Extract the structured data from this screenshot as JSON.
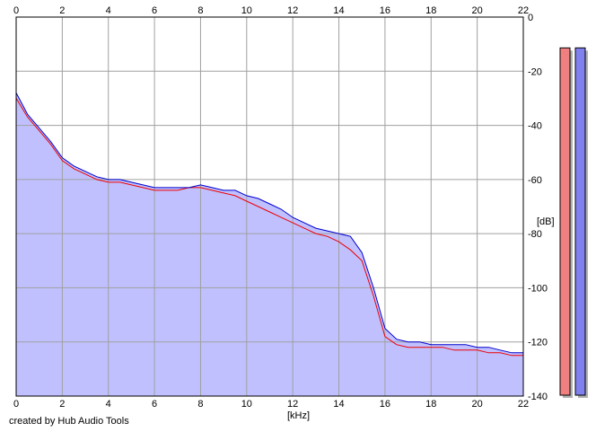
{
  "chart_data": {
    "type": "area",
    "xlabel": "[kHz]",
    "ylabel": "[dB]",
    "xlim": [
      0,
      22
    ],
    "ylim": [
      -140,
      0
    ],
    "x_ticks": [
      0,
      2,
      4,
      6,
      8,
      10,
      12,
      14,
      16,
      18,
      20,
      22
    ],
    "y_ticks": [
      0,
      -20,
      -40,
      -60,
      -80,
      -100,
      -120,
      -140
    ],
    "y_tick_labels": [
      "0",
      "-20",
      "-40",
      "-60",
      "-80",
      "-100",
      "-120",
      "-140"
    ],
    "grid": true,
    "series": [
      {
        "color": "#0000cc",
        "x": [
          0,
          0.5,
          1,
          1.5,
          2,
          2.5,
          3,
          3.5,
          4,
          4.5,
          5,
          5.5,
          6,
          6.5,
          7,
          7.5,
          8,
          8.5,
          9,
          9.5,
          10,
          10.5,
          11,
          11.5,
          12,
          12.5,
          13,
          13.5,
          14,
          14.5,
          15,
          15.5,
          16,
          16.5,
          17,
          17.5,
          18,
          18.5,
          19,
          19.5,
          20,
          20.5,
          21,
          21.5,
          22
        ],
        "y": [
          -28,
          -36,
          -41,
          -46,
          -52,
          -55,
          -57,
          -59,
          -60,
          -60,
          -61,
          -62,
          -63,
          -63,
          -63,
          -63,
          -62,
          -63,
          -64,
          -64,
          -66,
          -67,
          -69,
          -71,
          -74,
          -76,
          -78,
          -79,
          -80,
          -81,
          -87,
          -100,
          -115,
          -119,
          -120,
          -120,
          -121,
          -121,
          -121,
          -121,
          -122,
          -122,
          -123,
          -124,
          -124
        ]
      },
      {
        "color": "#ee0000",
        "x": [
          0,
          0.5,
          1,
          1.5,
          2,
          2.5,
          3,
          3.5,
          4,
          4.5,
          5,
          5.5,
          6,
          6.5,
          7,
          7.5,
          8,
          8.5,
          9,
          9.5,
          10,
          10.5,
          11,
          11.5,
          12,
          12.5,
          13,
          13.5,
          14,
          14.5,
          15,
          15.5,
          16,
          16.5,
          17,
          17.5,
          18,
          18.5,
          19,
          19.5,
          20,
          20.5,
          21,
          21.5,
          22
        ],
        "y": [
          -30,
          -37,
          -42,
          -47,
          -53,
          -56,
          -58,
          -60,
          -61,
          -61,
          -62,
          -63,
          -64,
          -64,
          -64,
          -63,
          -63,
          -64,
          -65,
          -66,
          -68,
          -70,
          -72,
          -74,
          -76,
          -78,
          -80,
          -81,
          -83,
          -86,
          -90,
          -103,
          -118,
          -121,
          -122,
          -122,
          -122,
          -122,
          -123,
          -123,
          -123,
          -124,
          -124,
          -125,
          -125
        ]
      }
    ],
    "fill_color": "#c0c0ff",
    "level_meters": [
      {
        "channel": "left",
        "color": "#f08080",
        "level_db": -6
      },
      {
        "channel": "right",
        "color": "#8080ee",
        "level_db": -6
      }
    ]
  },
  "footer": {
    "credit": "created by Hub Audio Tools"
  }
}
